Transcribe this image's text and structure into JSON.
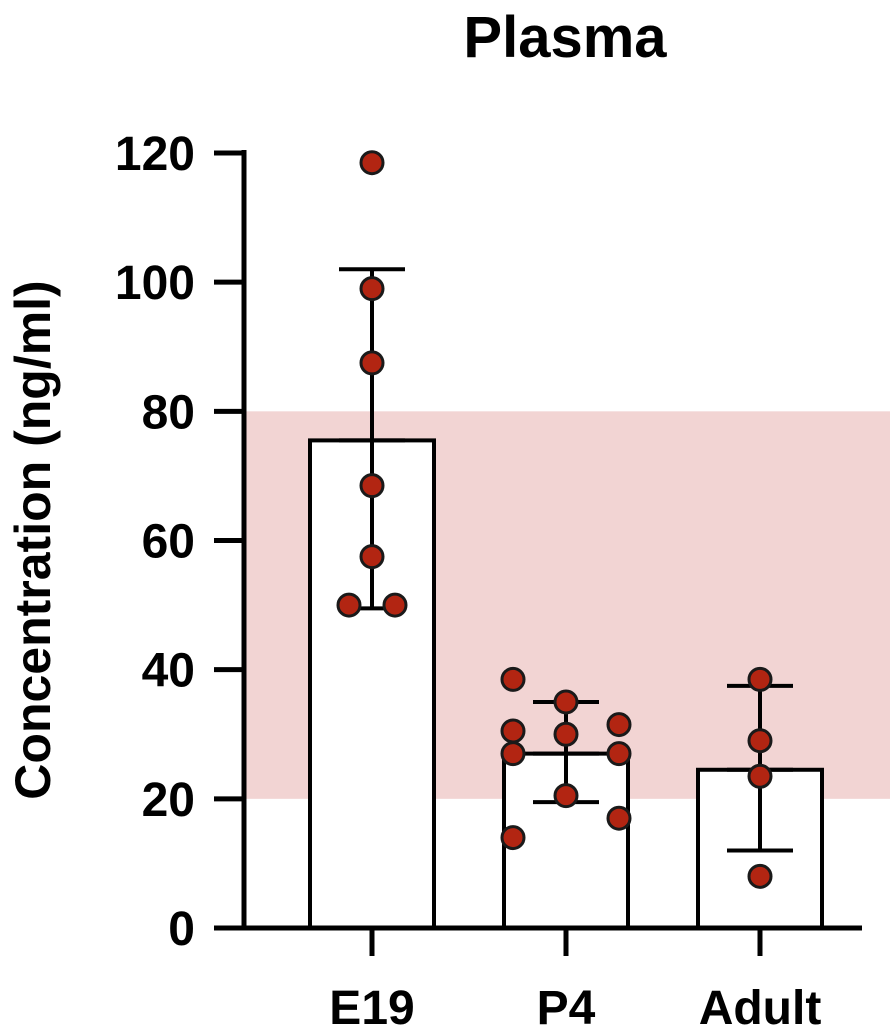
{
  "chart_data": {
    "type": "bar",
    "title": "Plasma",
    "xlabel": "",
    "ylabel": "Concentration (ng/ml)",
    "ylim": [
      0,
      120
    ],
    "yticks": [
      0,
      20,
      40,
      60,
      80,
      100,
      120
    ],
    "categories": [
      "E19",
      "P4",
      "Adult"
    ],
    "means": [
      75.5,
      27,
      24.5
    ],
    "error_upper": [
      102,
      35,
      37.5
    ],
    "error_lower": [
      49.5,
      19.5,
      12
    ],
    "points": [
      [
        118.5,
        99,
        87.5,
        68.5,
        57.5,
        50,
        50
      ],
      [
        38.5,
        30.5,
        14,
        35,
        30,
        20.5,
        31.5,
        27,
        17,
        27
      ],
      [
        38.5,
        29,
        23.5,
        8
      ]
    ],
    "reference_band": [
      20,
      80
    ],
    "colors": {
      "band": "#f2d4d3",
      "point_fill": "#b22512",
      "point_stroke": "#1a1a1a",
      "bar_fill": "#ffffff",
      "line": "#000000"
    },
    "grid": false,
    "legend": "none"
  }
}
